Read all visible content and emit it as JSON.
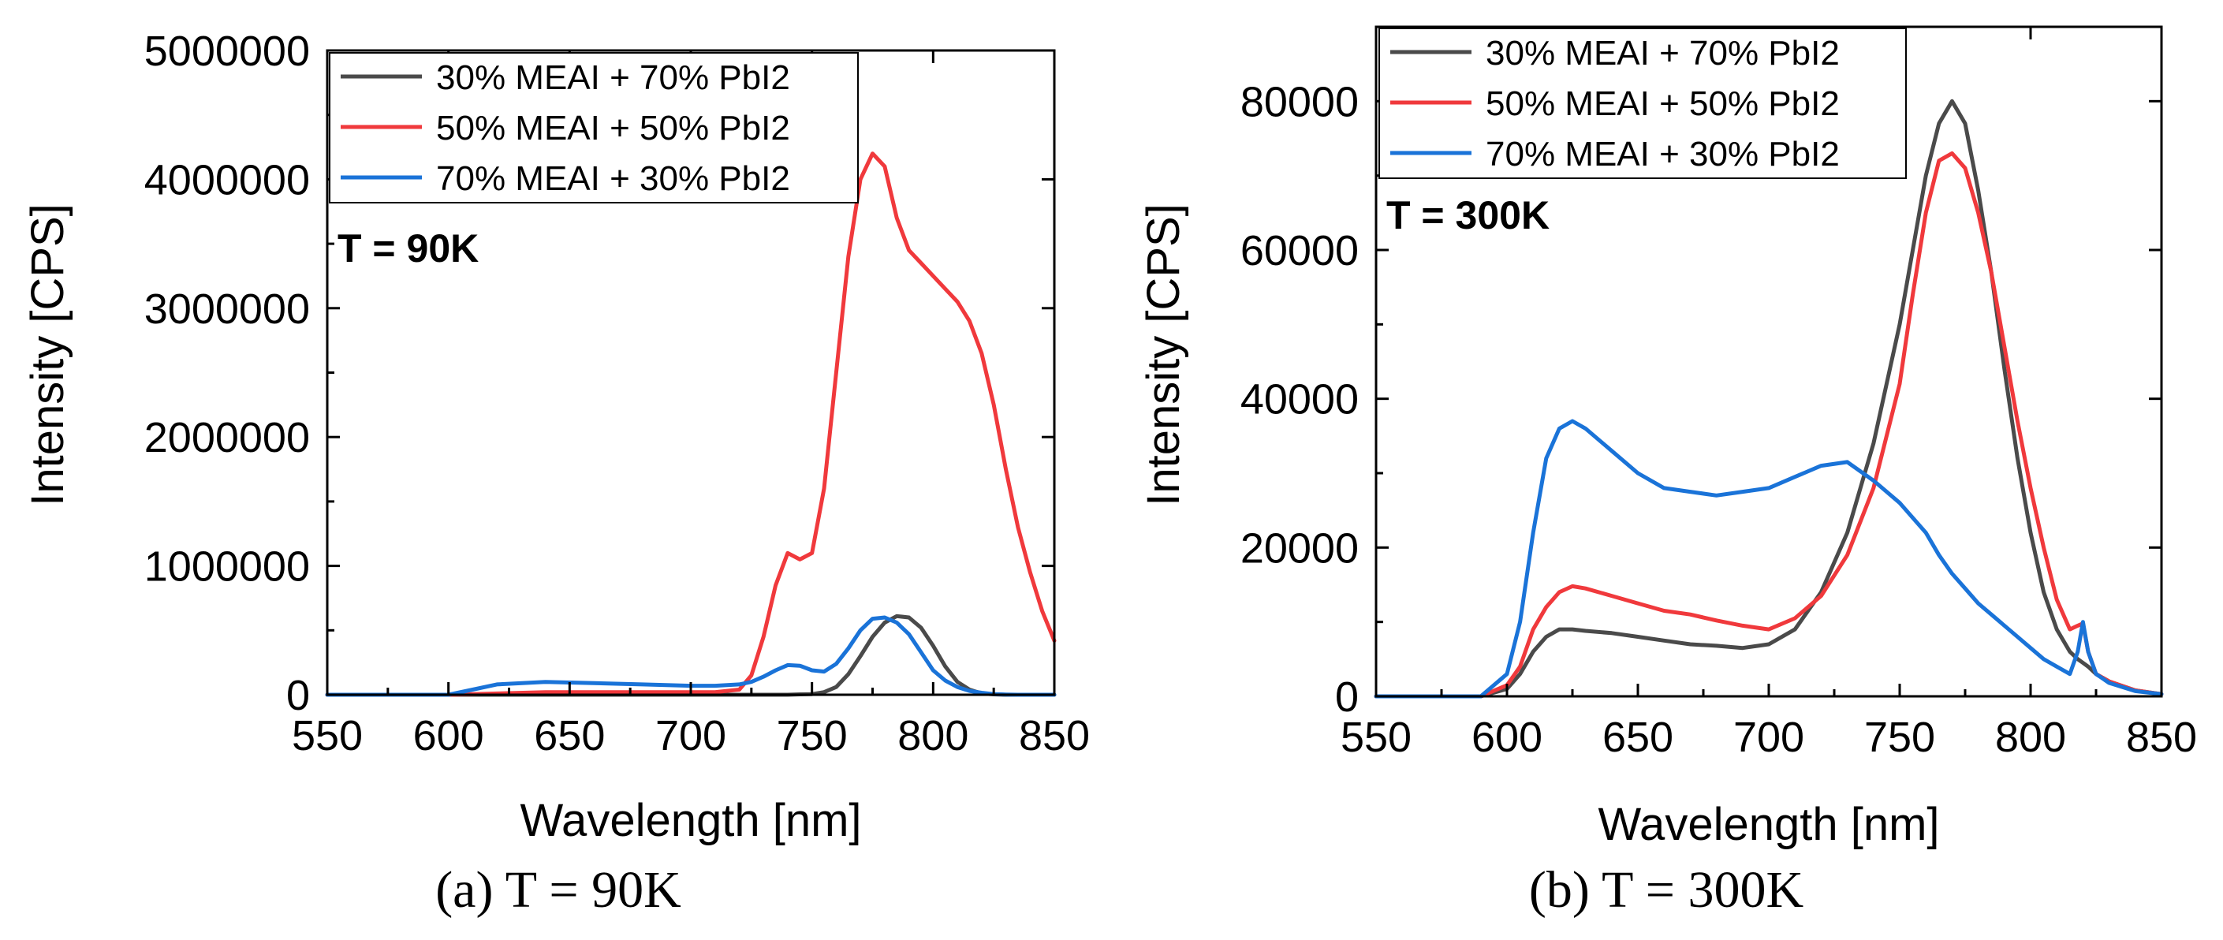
{
  "chart_data": [
    {
      "type": "line",
      "caption": "(a) T = 90K",
      "annotation": "T = 90K",
      "xlabel": "Wavelength [nm]",
      "ylabel": "Intensity [CPS]",
      "xlim": [
        550,
        850
      ],
      "ylim": [
        0,
        5000000
      ],
      "xticks": [
        550,
        600,
        650,
        700,
        750,
        800,
        850
      ],
      "yticks": [
        0,
        1000000,
        2000000,
        3000000,
        4000000,
        5000000
      ],
      "ytick_labels": [
        "0",
        "1000000",
        "2000000",
        "3000000",
        "4000000",
        "5000000"
      ],
      "legend_position": "top-right",
      "x": [
        550,
        600,
        610,
        620,
        640,
        660,
        680,
        700,
        710,
        720,
        725,
        730,
        735,
        740,
        745,
        750,
        755,
        760,
        765,
        770,
        775,
        780,
        785,
        790,
        795,
        800,
        805,
        810,
        815,
        820,
        825,
        830,
        835,
        840,
        845,
        850
      ],
      "series": [
        {
          "name": "30% MEAI + 70% PbI2",
          "color": "#4a4a4a",
          "values": [
            0,
            0,
            0,
            0,
            0,
            0,
            0,
            0,
            0,
            0,
            0,
            0,
            0,
            0,
            3000,
            5000,
            20000,
            60000,
            160000,
            300000,
            450000,
            560000,
            610000,
            600000,
            520000,
            380000,
            220000,
            100000,
            40000,
            10000,
            3000,
            0,
            0,
            0,
            0,
            0
          ]
        },
        {
          "name": "50% MEAI + 50% PbI2",
          "color": "#f0393c",
          "values": [
            0,
            0,
            5000,
            10000,
            20000,
            20000,
            20000,
            20000,
            20000,
            40000,
            150000,
            450000,
            850000,
            1100000,
            1050000,
            1100000,
            1600000,
            2500000,
            3400000,
            4000000,
            4200000,
            4100000,
            3700000,
            3450000,
            3350000,
            3250000,
            3150000,
            3050000,
            2900000,
            2650000,
            2250000,
            1750000,
            1300000,
            950000,
            650000,
            420000
          ]
        },
        {
          "name": "70% MEAI + 30% PbI2",
          "color": "#1a73d8",
          "values": [
            0,
            0,
            40000,
            80000,
            100000,
            90000,
            80000,
            70000,
            70000,
            80000,
            100000,
            140000,
            190000,
            230000,
            225000,
            190000,
            180000,
            240000,
            360000,
            500000,
            590000,
            600000,
            560000,
            470000,
            330000,
            190000,
            110000,
            60000,
            30000,
            15000,
            5000,
            2000,
            0,
            0,
            0,
            0
          ]
        }
      ]
    },
    {
      "type": "line",
      "caption": "(b) T = 300K",
      "annotation": "T = 300K",
      "xlabel": "Wavelength [nm]",
      "ylabel": "Intensity [CPS]",
      "xlim": [
        550,
        850
      ],
      "ylim": [
        0,
        90000
      ],
      "xticks": [
        550,
        600,
        650,
        700,
        750,
        800,
        850
      ],
      "yticks": [
        0,
        20000,
        40000,
        60000,
        80000
      ],
      "ytick_labels": [
        "0",
        "20000",
        "40000",
        "60000",
        "80000"
      ],
      "legend_position": "top-left",
      "x": [
        550,
        590,
        600,
        605,
        610,
        615,
        620,
        625,
        630,
        640,
        650,
        660,
        670,
        680,
        690,
        700,
        710,
        720,
        730,
        740,
        750,
        755,
        760,
        765,
        770,
        775,
        780,
        785,
        790,
        795,
        800,
        805,
        810,
        815,
        818,
        820,
        822,
        825,
        830,
        840,
        850
      ],
      "series": [
        {
          "name": "30% MEAI + 70% PbI2",
          "color": "#4a4a4a",
          "values": [
            0,
            0,
            1000,
            3000,
            6000,
            8000,
            9000,
            9000,
            8800,
            8500,
            8000,
            7500,
            7000,
            6800,
            6500,
            7000,
            9000,
            14000,
            22000,
            34000,
            50000,
            60000,
            70000,
            77000,
            80000,
            77000,
            68000,
            57000,
            44000,
            32000,
            22000,
            14000,
            9000,
            6000,
            5000,
            4500,
            4000,
            3000,
            2000,
            800,
            300
          ]
        },
        {
          "name": "50% MEAI + 50% PbI2",
          "color": "#f0393c",
          "values": [
            0,
            0,
            1500,
            4000,
            9000,
            12000,
            14000,
            14800,
            14500,
            13500,
            12500,
            11500,
            11000,
            10200,
            9500,
            9000,
            10500,
            13500,
            19000,
            28000,
            42000,
            54000,
            65000,
            72000,
            73000,
            71000,
            65000,
            57000,
            47000,
            37000,
            28000,
            20000,
            13000,
            9000,
            9500,
            9800,
            6000,
            3000,
            2000,
            800,
            300
          ]
        },
        {
          "name": "70% MEAI + 30% PbI2",
          "color": "#1a73d8",
          "values": [
            0,
            0,
            3000,
            10000,
            22000,
            32000,
            36000,
            37000,
            36000,
            33000,
            30000,
            28000,
            27500,
            27000,
            27500,
            28000,
            29500,
            31000,
            31500,
            29000,
            26000,
            24000,
            22000,
            19000,
            16500,
            14500,
            12500,
            11000,
            9500,
            8000,
            6500,
            5000,
            4000,
            3000,
            6000,
            10000,
            6000,
            3000,
            1800,
            700,
            300
          ]
        }
      ]
    }
  ]
}
